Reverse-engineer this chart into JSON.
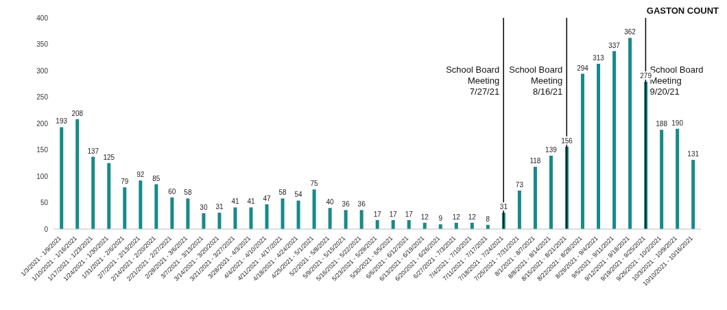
{
  "chart_data": {
    "type": "bar",
    "title": "GASTON COUNT",
    "categories": [
      "1/3/2021 - 1/9/2021",
      "1/10/2021 - 1/16/2021",
      "1/17/2021 - 1/23/2021",
      "1/24/2021 - 1/30/2021",
      "1/31/2021 - 2/6/2021",
      "2/7/2021 - 2/13/2021",
      "2/14/2021 - 2/20/2021",
      "2/21/2021 - 2/27/2021",
      "2/28/2021 - 3/6/2021",
      "3/7/2021 - 3/13/2021",
      "3/14/2021 - 3/20/2021",
      "3/21/2021 - 3/27/2021",
      "3/28/2021 - 4/3/2021",
      "4/4/2021 - 4/10/2021",
      "4/11/2021 - 4/17/2021",
      "4/18/2021 - 4/24/2021",
      "4/25/2021 - 5/1/2021",
      "5/2/2021 - 5/8/2021",
      "5/9/2021 - 5/15/2021",
      "5/16/2021 - 5/22/2021",
      "5/23/2021 - 5/29/2021",
      "5/30/2021 - 6/5/2021",
      "6/6/2021 - 6/12/2021",
      "6/13/2021 - 6/19/2021",
      "6/20/2021 - 6/26/2021",
      "6/27/2021 - 7/3/2021",
      "7/4/2021 - 7/10/2021",
      "7/11/2021 - 7/17/2021",
      "7/18/2021 - 7/24/2021",
      "7/25/2021 - 7/31/2021",
      "8/1/2021 - 8/7/2021",
      "8/8/2021 - 8/14/2021",
      "8/15/2021 - 8/21/2021",
      "8/22/2021 - 8/28/2021",
      "8/29/2021 - 9/4/2021",
      "9/5/2021 - 9/11/2021",
      "9/12/2021 - 9/18/2021",
      "9/19/2021 - 9/25/2021",
      "9/26/2021 - 10/2/2021",
      "10/3/2021 - 10/9/2021",
      "10/10/2021 - 10/16/2021"
    ],
    "values": [
      193,
      208,
      137,
      125,
      79,
      92,
      85,
      60,
      58,
      30,
      31,
      41,
      41,
      47,
      58,
      54,
      75,
      40,
      36,
      36,
      17,
      17,
      17,
      12,
      9,
      12,
      12,
      8,
      31,
      73,
      118,
      139,
      156,
      294,
      313,
      337,
      362,
      279,
      188,
      190,
      131
    ],
    "color": "#178a8a",
    "data_labels": true,
    "grid": false,
    "legend": false,
    "ylim": [
      0,
      400
    ],
    "yticks": [
      0,
      50,
      100,
      150,
      200,
      250,
      300,
      350,
      400
    ],
    "ref_lines": [
      {
        "axis": "x",
        "value": "7/18/2021 - 7/24/2021",
        "label": "School Board Meeting 7/27/21",
        "color": "#000000"
      },
      {
        "axis": "x",
        "value": "8/15/2021 - 8/21/2021",
        "label": "School Board Meeting 8/16/21",
        "color": "#000000"
      },
      {
        "axis": "x",
        "value": "9/19/2021 - 9/25/2021",
        "label": "School Board Meeting 9/20/21",
        "color": "#000000"
      }
    ]
  }
}
